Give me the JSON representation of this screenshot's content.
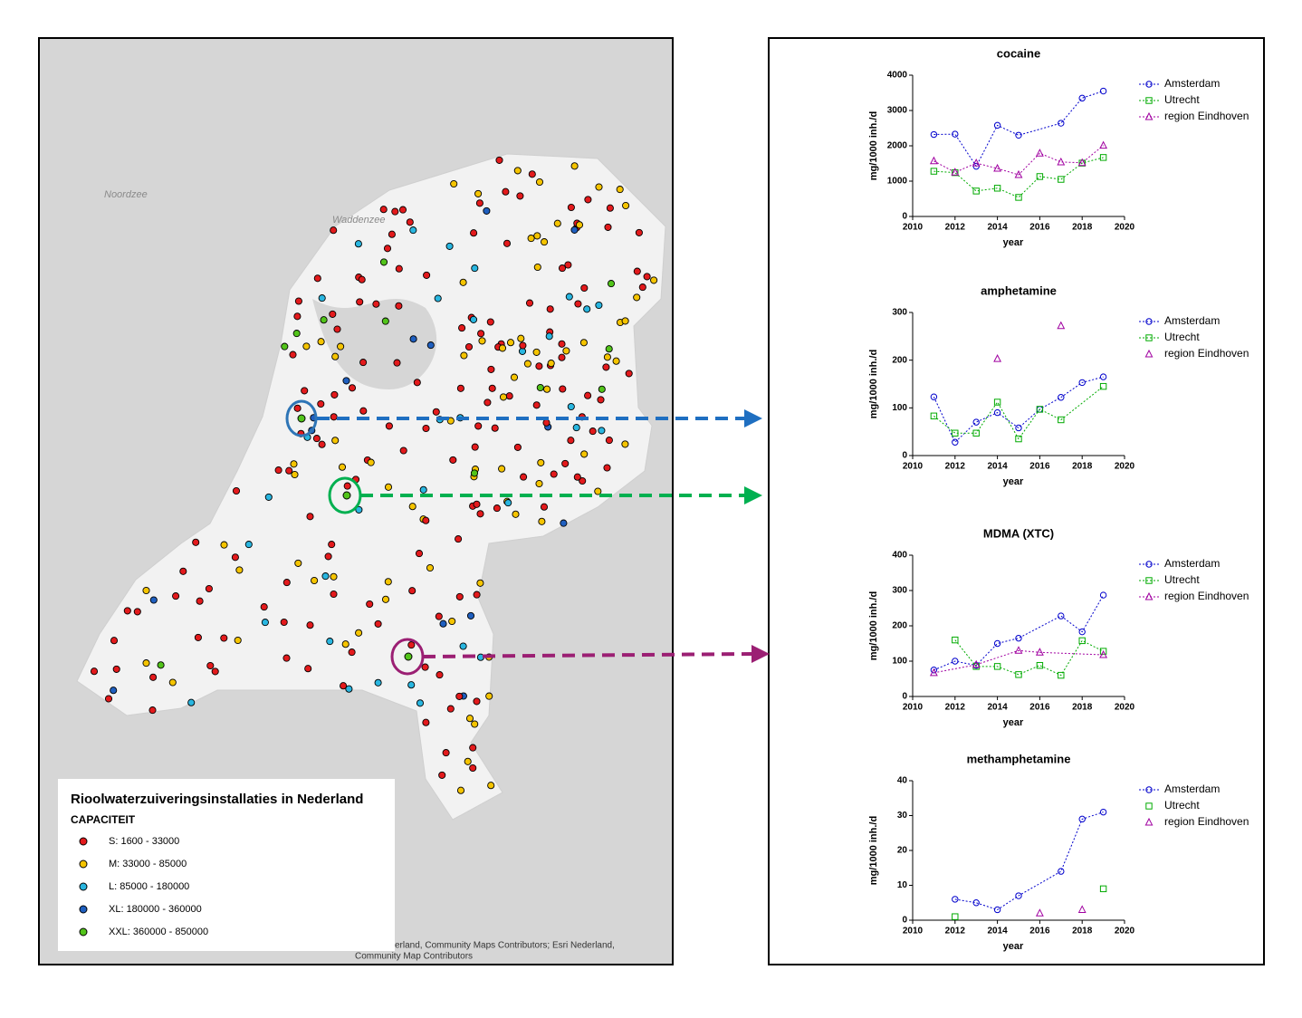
{
  "map": {
    "sea_label": "Noordzee",
    "wadden_label": "Waddenzee",
    "legend": {
      "title": "Rioolwaterzuiveringsinstallaties in Nederland",
      "subtitle": "CAPACITEIT",
      "items": [
        {
          "label": "S: 1600 - 33000",
          "color": "#e31a1c"
        },
        {
          "label": "M: 33000 - 85000",
          "color": "#f5c400"
        },
        {
          "label": "L: 85000 - 180000",
          "color": "#29b6e0"
        },
        {
          "label": "XL: 180000 - 360000",
          "color": "#1f5fbf"
        },
        {
          "label": "XXL: 360000 - 850000",
          "color": "#52c41a"
        }
      ]
    },
    "attribution": [
      "erland, Community Maps Contributors; Esri Nederland,",
      "Community Map Contributors"
    ]
  },
  "chart_data": [
    {
      "type": "line",
      "title": "cocaine",
      "xlabel": "year",
      "ylabel": "mg/1000 inh./d",
      "xlim": [
        2010,
        2020
      ],
      "xticks": [
        2010,
        2012,
        2014,
        2016,
        2018,
        2020
      ],
      "ylim": [
        0,
        4000
      ],
      "yticks": [
        0,
        1000,
        2000,
        3000,
        4000
      ],
      "series": [
        {
          "name": "Amsterdam",
          "color": "#0000cc",
          "marker": "circle",
          "line": true,
          "x": [
            2011,
            2012,
            2013,
            2014,
            2015,
            2017,
            2018,
            2019
          ],
          "values": [
            2320,
            2330,
            1420,
            2580,
            2300,
            2640,
            3350,
            3550
          ]
        },
        {
          "name": "Utrecht",
          "color": "#00aa00",
          "marker": "square",
          "line": true,
          "x": [
            2011,
            2012,
            2013,
            2014,
            2015,
            2016,
            2017,
            2018,
            2019
          ],
          "values": [
            1280,
            1240,
            720,
            800,
            540,
            1130,
            1050,
            1510,
            1670
          ]
        },
        {
          "name": "region Eindhoven",
          "color": "#a000a0",
          "marker": "triangle",
          "line": true,
          "x": [
            2011,
            2012,
            2013,
            2014,
            2015,
            2016,
            2017,
            2018,
            2019
          ],
          "values": [
            1570,
            1250,
            1510,
            1360,
            1180,
            1790,
            1540,
            1520,
            2010
          ]
        }
      ]
    },
    {
      "type": "line",
      "title": "amphetamine",
      "xlabel": "year",
      "ylabel": "mg/1000 inh./d",
      "xlim": [
        2010,
        2020
      ],
      "xticks": [
        2010,
        2012,
        2014,
        2016,
        2018,
        2020
      ],
      "ylim": [
        0,
        300
      ],
      "yticks": [
        0,
        100,
        200,
        300
      ],
      "series": [
        {
          "name": "Amsterdam",
          "color": "#0000cc",
          "marker": "circle",
          "line": true,
          "x": [
            2011,
            2012,
            2013,
            2014,
            2015,
            2016,
            2017,
            2018,
            2019
          ],
          "values": [
            123,
            28,
            70,
            90,
            58,
            97,
            122,
            153,
            165
          ]
        },
        {
          "name": "Utrecht",
          "color": "#00aa00",
          "marker": "square",
          "line": true,
          "x": [
            2011,
            2012,
            2013,
            2014,
            2015,
            2016,
            2017,
            2019
          ],
          "values": [
            83,
            47,
            47,
            112,
            35,
            97,
            75,
            145
          ]
        },
        {
          "name": "region Eindhoven",
          "color": "#a000a0",
          "marker": "triangle",
          "line": false,
          "x": [
            2014,
            2017
          ],
          "values": [
            203,
            272
          ]
        }
      ]
    },
    {
      "type": "line",
      "title": "MDMA (XTC)",
      "xlabel": "year",
      "ylabel": "mg/1000 inh./d",
      "xlim": [
        2010,
        2020
      ],
      "xticks": [
        2010,
        2012,
        2014,
        2016,
        2018,
        2020
      ],
      "ylim": [
        0,
        400
      ],
      "yticks": [
        0,
        100,
        200,
        300,
        400
      ],
      "series": [
        {
          "name": "Amsterdam",
          "color": "#0000cc",
          "marker": "circle",
          "line": true,
          "x": [
            2011,
            2012,
            2013,
            2014,
            2015,
            2017,
            2018,
            2019
          ],
          "values": [
            75,
            100,
            88,
            150,
            165,
            228,
            183,
            287
          ]
        },
        {
          "name": "Utrecht",
          "color": "#00aa00",
          "marker": "square",
          "line": true,
          "x": [
            2012,
            2013,
            2014,
            2015,
            2016,
            2017,
            2018,
            2019
          ],
          "values": [
            160,
            85,
            85,
            62,
            88,
            60,
            158,
            128
          ]
        },
        {
          "name": "region Eindhoven",
          "color": "#a000a0",
          "marker": "triangle",
          "line": true,
          "x": [
            2011,
            2013,
            2015,
            2016,
            2019
          ],
          "values": [
            67,
            90,
            130,
            125,
            118
          ]
        }
      ]
    },
    {
      "type": "line",
      "title": "methamphetamine",
      "xlabel": "year",
      "ylabel": "mg/1000 inh./d",
      "xlim": [
        2010,
        2020
      ],
      "xticks": [
        2010,
        2012,
        2014,
        2016,
        2018,
        2020
      ],
      "ylim": [
        0,
        40
      ],
      "yticks": [
        0,
        10,
        20,
        30,
        40
      ],
      "series": [
        {
          "name": "Amsterdam",
          "color": "#0000cc",
          "marker": "circle",
          "line": true,
          "x": [
            2012,
            2013,
            2014,
            2015,
            2017,
            2018,
            2019
          ],
          "values": [
            6,
            5,
            3,
            7,
            14,
            29,
            31
          ]
        },
        {
          "name": "Utrecht",
          "color": "#00aa00",
          "marker": "square",
          "line": false,
          "x": [
            2012,
            2019
          ],
          "values": [
            1,
            9
          ]
        },
        {
          "name": "region Eindhoven",
          "color": "#a000a0",
          "marker": "triangle",
          "line": false,
          "x": [
            2016,
            2018
          ],
          "values": [
            2,
            3
          ]
        }
      ]
    }
  ]
}
